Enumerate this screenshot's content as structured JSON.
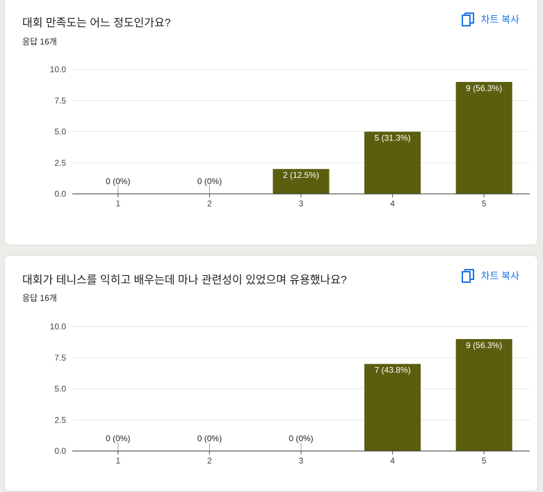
{
  "copy_label": "차트 복사",
  "questions": [
    {
      "title": "대회 만족도는 어느 정도인가요?",
      "responses": "응답 16개",
      "chart_data": {
        "type": "bar",
        "categories": [
          "1",
          "2",
          "3",
          "4",
          "5"
        ],
        "values": [
          0,
          0,
          2,
          5,
          9
        ],
        "data_labels": [
          "0 (0%)",
          "0 (0%)",
          "2 (12.5%)",
          "5 (31.3%)",
          "9 (56.3%)"
        ],
        "yticks": [
          "0.0",
          "2.5",
          "5.0",
          "7.5",
          "10.0"
        ],
        "ylim": [
          0,
          10
        ],
        "bar_color": "#5a5e0e",
        "grid": true
      }
    },
    {
      "title": "대회가 테니스를 익히고 배우는데 마나 관련성이 있었으며 유용했나요?",
      "responses": "응답 16개",
      "chart_data": {
        "type": "bar",
        "categories": [
          "1",
          "2",
          "3",
          "4",
          "5"
        ],
        "values": [
          0,
          0,
          0,
          7,
          9
        ],
        "data_labels": [
          "0 (0%)",
          "0 (0%)",
          "0 (0%)",
          "7 (43.8%)",
          "9 (56.3%)"
        ],
        "yticks": [
          "0.0",
          "2.5",
          "5.0",
          "7.5",
          "10.0"
        ],
        "ylim": [
          0,
          10
        ],
        "bar_color": "#5a5e0e",
        "grid": true
      }
    }
  ]
}
